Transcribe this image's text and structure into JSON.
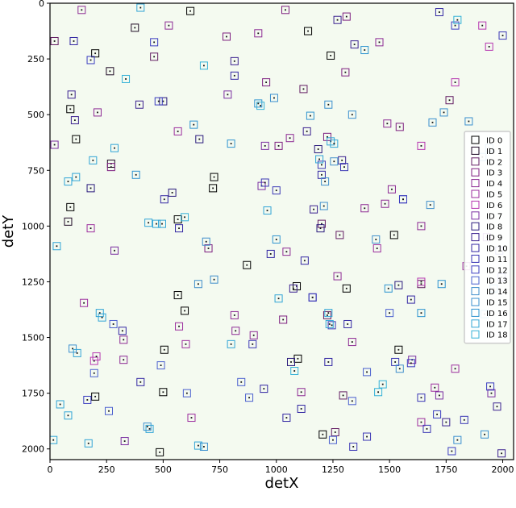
{
  "chart_data": {
    "type": "scatter",
    "title": "",
    "xlabel": "detX",
    "ylabel": "detY",
    "xlim": [
      0,
      2048
    ],
    "ylim": [
      2048,
      0
    ],
    "y_inverted": true,
    "grid": false,
    "background": "#f4faf0",
    "legend_placement": "right",
    "x_ticks": [
      "0",
      "250",
      "500",
      "750",
      "1000",
      "1250",
      "1500",
      "1750",
      "2000"
    ],
    "y_ticks": [
      "0",
      "250",
      "500",
      "750",
      "1000",
      "1250",
      "1500",
      "1750",
      "2000"
    ],
    "x_tick_values": [
      0,
      250,
      500,
      750,
      1000,
      1250,
      1500,
      1750,
      2000
    ],
    "y_tick_values": [
      0,
      250,
      500,
      750,
      1000,
      1250,
      1500,
      1750,
      2000
    ],
    "series": [
      {
        "name": "ID 0",
        "color": "#000000",
        "points": [
          [
            620,
            35
          ],
          [
            1140,
            125
          ],
          [
            1240,
            235
          ],
          [
            200,
            225
          ],
          [
            90,
            475
          ],
          [
            115,
            610
          ],
          [
            725,
            780
          ],
          [
            720,
            830
          ],
          [
            90,
            915
          ],
          [
            565,
            970
          ],
          [
            1520,
            1040
          ],
          [
            870,
            1175
          ],
          [
            565,
            1310
          ],
          [
            595,
            1380
          ],
          [
            1090,
            1270
          ],
          [
            1310,
            1280
          ],
          [
            1540,
            1555
          ],
          [
            505,
            1555
          ],
          [
            1095,
            1595
          ],
          [
            200,
            1765
          ],
          [
            500,
            1745
          ],
          [
            1205,
            1935
          ],
          [
            485,
            2015
          ]
        ]
      },
      {
        "name": "ID 1",
        "color": "#1f0b26",
        "points": [
          [
            375,
            110
          ],
          [
            265,
            305
          ],
          [
            270,
            720
          ],
          [
            80,
            980
          ]
        ]
      },
      {
        "name": "ID 2",
        "color": "#631d63",
        "points": [
          [
            20,
            170
          ],
          [
            460,
            240
          ],
          [
            1120,
            385
          ],
          [
            1765,
            435
          ],
          [
            1200,
            990
          ],
          [
            1280,
            1040
          ],
          [
            1225,
            1400
          ],
          [
            1295,
            1760
          ],
          [
            1260,
            1925
          ],
          [
            1640,
            1260
          ]
        ]
      },
      {
        "name": "ID 3",
        "color": "#7d1e7f",
        "points": [
          [
            1040,
            30
          ],
          [
            1310,
            60
          ],
          [
            780,
            150
          ],
          [
            1305,
            310
          ],
          [
            955,
            355
          ],
          [
            1225,
            600
          ],
          [
            1010,
            640
          ],
          [
            1545,
            555
          ],
          [
            270,
            735
          ],
          [
            700,
            1100
          ],
          [
            1030,
            1420
          ]
        ]
      },
      {
        "name": "ID 4",
        "color": "#8d2a94",
        "points": [
          [
            140,
            30
          ],
          [
            525,
            100
          ],
          [
            920,
            135
          ],
          [
            1455,
            175
          ],
          [
            210,
            490
          ],
          [
            1060,
            605
          ],
          [
            1490,
            540
          ],
          [
            1045,
            1115
          ],
          [
            1390,
            920
          ],
          [
            1510,
            835
          ],
          [
            1480,
            900
          ],
          [
            815,
            1400
          ],
          [
            820,
            1470
          ],
          [
            900,
            1490
          ],
          [
            1335,
            1520
          ],
          [
            325,
            1510
          ],
          [
            325,
            1600
          ],
          [
            1270,
            1225
          ],
          [
            1640,
            1000
          ],
          [
            1110,
            1745
          ]
        ]
      },
      {
        "name": "ID 5",
        "color": "#9c2e9e",
        "points": [
          [
            565,
            575
          ],
          [
            180,
            1010
          ],
          [
            150,
            1345
          ],
          [
            570,
            1450
          ],
          [
            600,
            1530
          ],
          [
            625,
            1860
          ],
          [
            1445,
            1100
          ],
          [
            1700,
            1725
          ],
          [
            1790,
            1640
          ],
          [
            1640,
            1880
          ],
          [
            1840,
            1180
          ]
        ]
      },
      {
        "name": "ID 6",
        "color": "#b636b0",
        "points": [
          [
            1910,
            100
          ],
          [
            1940,
            195
          ],
          [
            1790,
            355
          ],
          [
            1640,
            640
          ],
          [
            1640,
            1250
          ],
          [
            195,
            1605
          ],
          [
            205,
            1585
          ]
        ]
      },
      {
        "name": "ID 7",
        "color": "#7a2ea1",
        "points": [
          [
            20,
            635
          ],
          [
            285,
            1110
          ],
          [
            950,
            640
          ],
          [
            935,
            820
          ],
          [
            785,
            410
          ],
          [
            330,
            1965
          ],
          [
            1600,
            1600
          ],
          [
            1720,
            1760
          ],
          [
            1950,
            1750
          ],
          [
            1930,
            1050
          ]
        ]
      },
      {
        "name": "ID 8",
        "color": "#2a1a7d",
        "points": [
          [
            500,
            440
          ],
          [
            180,
            830
          ],
          [
            540,
            850
          ],
          [
            660,
            610
          ],
          [
            1185,
            655
          ],
          [
            1195,
            1010
          ],
          [
            1065,
            1610
          ],
          [
            1540,
            1265
          ]
        ]
      },
      {
        "name": "ID 9",
        "color": "#3b2190",
        "points": [
          [
            1270,
            75
          ],
          [
            1345,
            185
          ],
          [
            815,
            260
          ],
          [
            95,
            410
          ],
          [
            110,
            525
          ],
          [
            395,
            455
          ],
          [
            1135,
            575
          ],
          [
            1290,
            705
          ],
          [
            1165,
            925
          ],
          [
            1075,
            1280
          ],
          [
            1160,
            1320
          ],
          [
            1750,
            1880
          ],
          [
            1975,
            1810
          ],
          [
            1995,
            2020
          ]
        ]
      },
      {
        "name": "ID 10",
        "color": "#3226a3",
        "points": [
          [
            1720,
            40
          ],
          [
            105,
            170
          ],
          [
            815,
            325
          ],
          [
            1200,
            770
          ],
          [
            505,
            880
          ],
          [
            570,
            1010
          ],
          [
            975,
            1125
          ],
          [
            1125,
            1155
          ],
          [
            320,
            1470
          ],
          [
            400,
            1700
          ],
          [
            945,
            1730
          ],
          [
            1110,
            1820
          ],
          [
            1045,
            1860
          ],
          [
            1230,
            1610
          ],
          [
            1315,
            1440
          ],
          [
            1595,
            1330
          ]
        ]
      },
      {
        "name": "ID 11",
        "color": "#3b37b5",
        "points": [
          [
            2000,
            145
          ],
          [
            1200,
            725
          ],
          [
            1300,
            735
          ],
          [
            950,
            805
          ],
          [
            1000,
            840
          ],
          [
            1560,
            880
          ],
          [
            1245,
            1445
          ],
          [
            895,
            1530
          ],
          [
            1525,
            1610
          ],
          [
            1640,
            1770
          ],
          [
            1830,
            1870
          ],
          [
            1340,
            1990
          ],
          [
            1665,
            1910
          ],
          [
            1400,
            1945
          ],
          [
            1985,
            1110
          ],
          [
            1995,
            1230
          ]
        ]
      },
      {
        "name": "ID 12",
        "color": "#3a3cc0",
        "points": [
          [
            1790,
            100
          ],
          [
            180,
            255
          ],
          [
            460,
            175
          ],
          [
            480,
            440
          ],
          [
            1560,
            880
          ],
          [
            1160,
            1320
          ],
          [
            165,
            1780
          ],
          [
            1945,
            1720
          ],
          [
            1595,
            1615
          ],
          [
            1710,
            1845
          ],
          [
            1775,
            2010
          ]
        ]
      },
      {
        "name": "ID 13",
        "color": "#4b60cf",
        "points": [
          [
            280,
            1440
          ],
          [
            195,
            1660
          ],
          [
            260,
            1830
          ],
          [
            880,
            1770
          ],
          [
            490,
            1625
          ],
          [
            605,
            1750
          ],
          [
            845,
            1700
          ],
          [
            1400,
            1655
          ],
          [
            1250,
            1960
          ],
          [
            1335,
            1785
          ],
          [
            1500,
            1390
          ]
        ]
      },
      {
        "name": "ID 14",
        "color": "#408ecb",
        "points": [
          [
            655,
            1260
          ],
          [
            725,
            1240
          ],
          [
            690,
            1070
          ],
          [
            1680,
            905
          ],
          [
            1440,
            1060
          ],
          [
            1210,
            910
          ],
          [
            1215,
            800
          ],
          [
            1255,
            710
          ],
          [
            1545,
            1640
          ]
        ]
      },
      {
        "name": "ID 15",
        "color": "#3a8fcf",
        "points": [
          [
            1230,
            455
          ],
          [
            990,
            425
          ],
          [
            1335,
            500
          ],
          [
            1740,
            490
          ],
          [
            1690,
            535
          ],
          [
            1850,
            530
          ],
          [
            1910,
            690
          ],
          [
            1940,
            650
          ],
          [
            100,
            1550
          ],
          [
            430,
            1900
          ],
          [
            680,
            1990
          ],
          [
            1800,
            1960
          ],
          [
            1920,
            1935
          ]
        ]
      },
      {
        "name": "ID 16",
        "color": "#2f94d0",
        "points": [
          [
            1390,
            210
          ],
          [
            1150,
            505
          ],
          [
            635,
            545
          ],
          [
            800,
            630
          ],
          [
            920,
            450
          ],
          [
            380,
            770
          ],
          [
            1000,
            1060
          ],
          [
            1495,
            1280
          ],
          [
            1640,
            1390
          ],
          [
            1730,
            1260
          ],
          [
            1960,
            1280
          ]
        ]
      },
      {
        "name": "ID 17",
        "color": "#30a4d6",
        "points": [
          [
            400,
            20
          ],
          [
            1240,
            620
          ],
          [
            1255,
            630
          ],
          [
            1190,
            700
          ],
          [
            285,
            650
          ],
          [
            190,
            705
          ],
          [
            80,
            800
          ],
          [
            115,
            780
          ],
          [
            960,
            930
          ],
          [
            435,
            985
          ],
          [
            470,
            990
          ],
          [
            495,
            990
          ],
          [
            30,
            1090
          ],
          [
            1010,
            1325
          ],
          [
            1230,
            1390
          ],
          [
            1235,
            1440
          ],
          [
            220,
            1390
          ],
          [
            230,
            1410
          ],
          [
            120,
            1570
          ],
          [
            800,
            1530
          ],
          [
            440,
            1910
          ],
          [
            170,
            1975
          ],
          [
            655,
            1985
          ],
          [
            15,
            1960
          ],
          [
            80,
            1850
          ],
          [
            45,
            1800
          ]
        ]
      },
      {
        "name": "ID 18",
        "color": "#36b2d8",
        "points": [
          [
            1800,
            75
          ],
          [
            680,
            280
          ],
          [
            335,
            340
          ],
          [
            930,
            460
          ],
          [
            595,
            960
          ],
          [
            1080,
            1650
          ],
          [
            1470,
            1710
          ],
          [
            1450,
            1745
          ],
          [
            1920,
            1395
          ]
        ]
      }
    ]
  }
}
